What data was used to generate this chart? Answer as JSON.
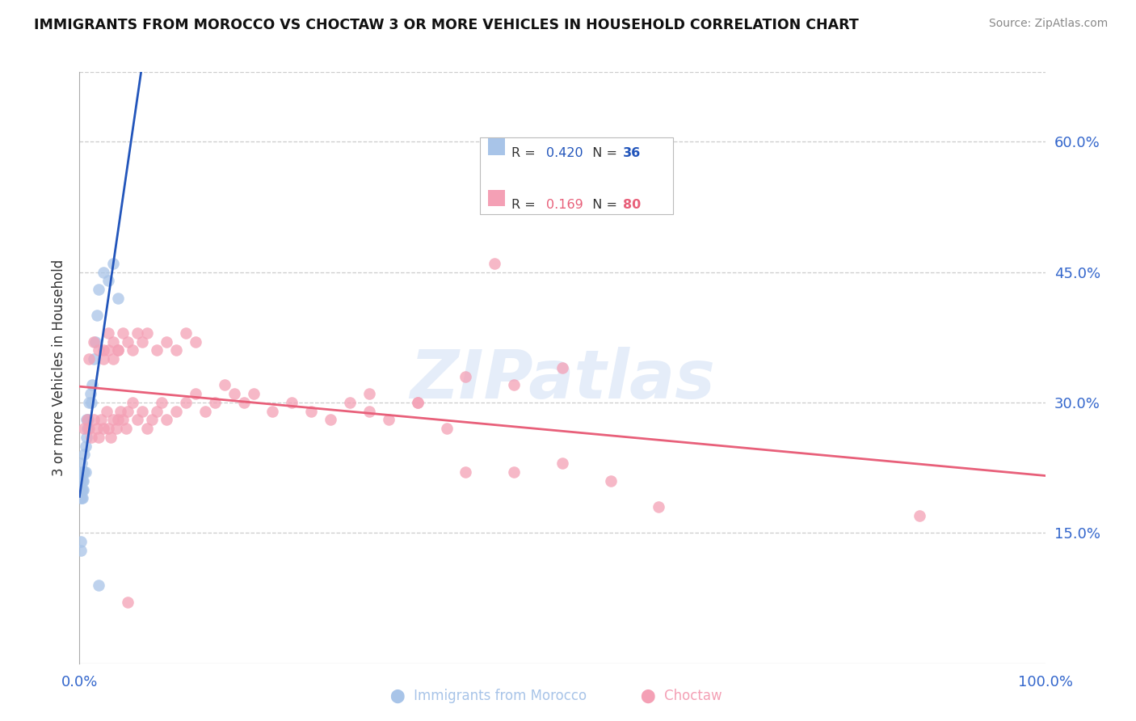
{
  "title": "IMMIGRANTS FROM MOROCCO VS CHOCTAW 3 OR MORE VEHICLES IN HOUSEHOLD CORRELATION CHART",
  "source": "Source: ZipAtlas.com",
  "ylabel": "3 or more Vehicles in Household",
  "ytick_vals": [
    0.15,
    0.3,
    0.45,
    0.6
  ],
  "ytick_labels": [
    "15.0%",
    "30.0%",
    "45.0%",
    "60.0%"
  ],
  "xlim": [
    0.0,
    1.0
  ],
  "ylim": [
    0.0,
    0.68
  ],
  "watermark": "ZIPatlas",
  "morocco_R": 0.42,
  "morocco_N": 36,
  "choctaw_R": 0.169,
  "choctaw_N": 80,
  "morocco_color": "#a8c4e8",
  "choctaw_color": "#f4a0b5",
  "morocco_line_color": "#2255bb",
  "choctaw_line_color": "#e8607a",
  "morocco_x": [
    0.001,
    0.001,
    0.001,
    0.001,
    0.001,
    0.002,
    0.002,
    0.002,
    0.002,
    0.003,
    0.003,
    0.003,
    0.004,
    0.004,
    0.004,
    0.005,
    0.005,
    0.006,
    0.006,
    0.007,
    0.007,
    0.008,
    0.009,
    0.01,
    0.011,
    0.012,
    0.013,
    0.015,
    0.016,
    0.018,
    0.02,
    0.025,
    0.03,
    0.035,
    0.04,
    0.02
  ],
  "morocco_y": [
    0.19,
    0.2,
    0.21,
    0.13,
    0.14,
    0.19,
    0.2,
    0.22,
    0.23,
    0.19,
    0.2,
    0.21,
    0.2,
    0.21,
    0.22,
    0.22,
    0.24,
    0.22,
    0.25,
    0.26,
    0.28,
    0.27,
    0.28,
    0.3,
    0.31,
    0.3,
    0.32,
    0.35,
    0.37,
    0.4,
    0.43,
    0.45,
    0.44,
    0.46,
    0.42,
    0.09
  ],
  "choctaw_x": [
    0.005,
    0.008,
    0.01,
    0.012,
    0.015,
    0.018,
    0.02,
    0.022,
    0.025,
    0.028,
    0.03,
    0.032,
    0.035,
    0.038,
    0.04,
    0.042,
    0.045,
    0.048,
    0.05,
    0.055,
    0.06,
    0.065,
    0.07,
    0.075,
    0.08,
    0.085,
    0.09,
    0.1,
    0.11,
    0.12,
    0.13,
    0.14,
    0.15,
    0.16,
    0.17,
    0.18,
    0.2,
    0.22,
    0.24,
    0.26,
    0.28,
    0.3,
    0.32,
    0.35,
    0.38,
    0.4,
    0.45,
    0.5,
    0.55,
    0.6,
    0.025,
    0.03,
    0.035,
    0.04,
    0.045,
    0.05,
    0.055,
    0.06,
    0.065,
    0.07,
    0.08,
    0.09,
    0.1,
    0.11,
    0.12,
    0.01,
    0.015,
    0.02,
    0.025,
    0.03,
    0.035,
    0.04,
    0.3,
    0.35,
    0.4,
    0.45,
    0.5,
    0.87,
    0.43,
    0.05
  ],
  "choctaw_y": [
    0.27,
    0.28,
    0.27,
    0.26,
    0.28,
    0.27,
    0.26,
    0.28,
    0.27,
    0.29,
    0.27,
    0.26,
    0.28,
    0.27,
    0.28,
    0.29,
    0.28,
    0.27,
    0.29,
    0.3,
    0.28,
    0.29,
    0.27,
    0.28,
    0.29,
    0.3,
    0.28,
    0.29,
    0.3,
    0.31,
    0.29,
    0.3,
    0.32,
    0.31,
    0.3,
    0.31,
    0.29,
    0.3,
    0.29,
    0.28,
    0.3,
    0.29,
    0.28,
    0.3,
    0.27,
    0.22,
    0.22,
    0.23,
    0.21,
    0.18,
    0.36,
    0.38,
    0.37,
    0.36,
    0.38,
    0.37,
    0.36,
    0.38,
    0.37,
    0.38,
    0.36,
    0.37,
    0.36,
    0.38,
    0.37,
    0.35,
    0.37,
    0.36,
    0.35,
    0.36,
    0.35,
    0.36,
    0.31,
    0.3,
    0.33,
    0.32,
    0.34,
    0.17,
    0.46,
    0.07
  ]
}
